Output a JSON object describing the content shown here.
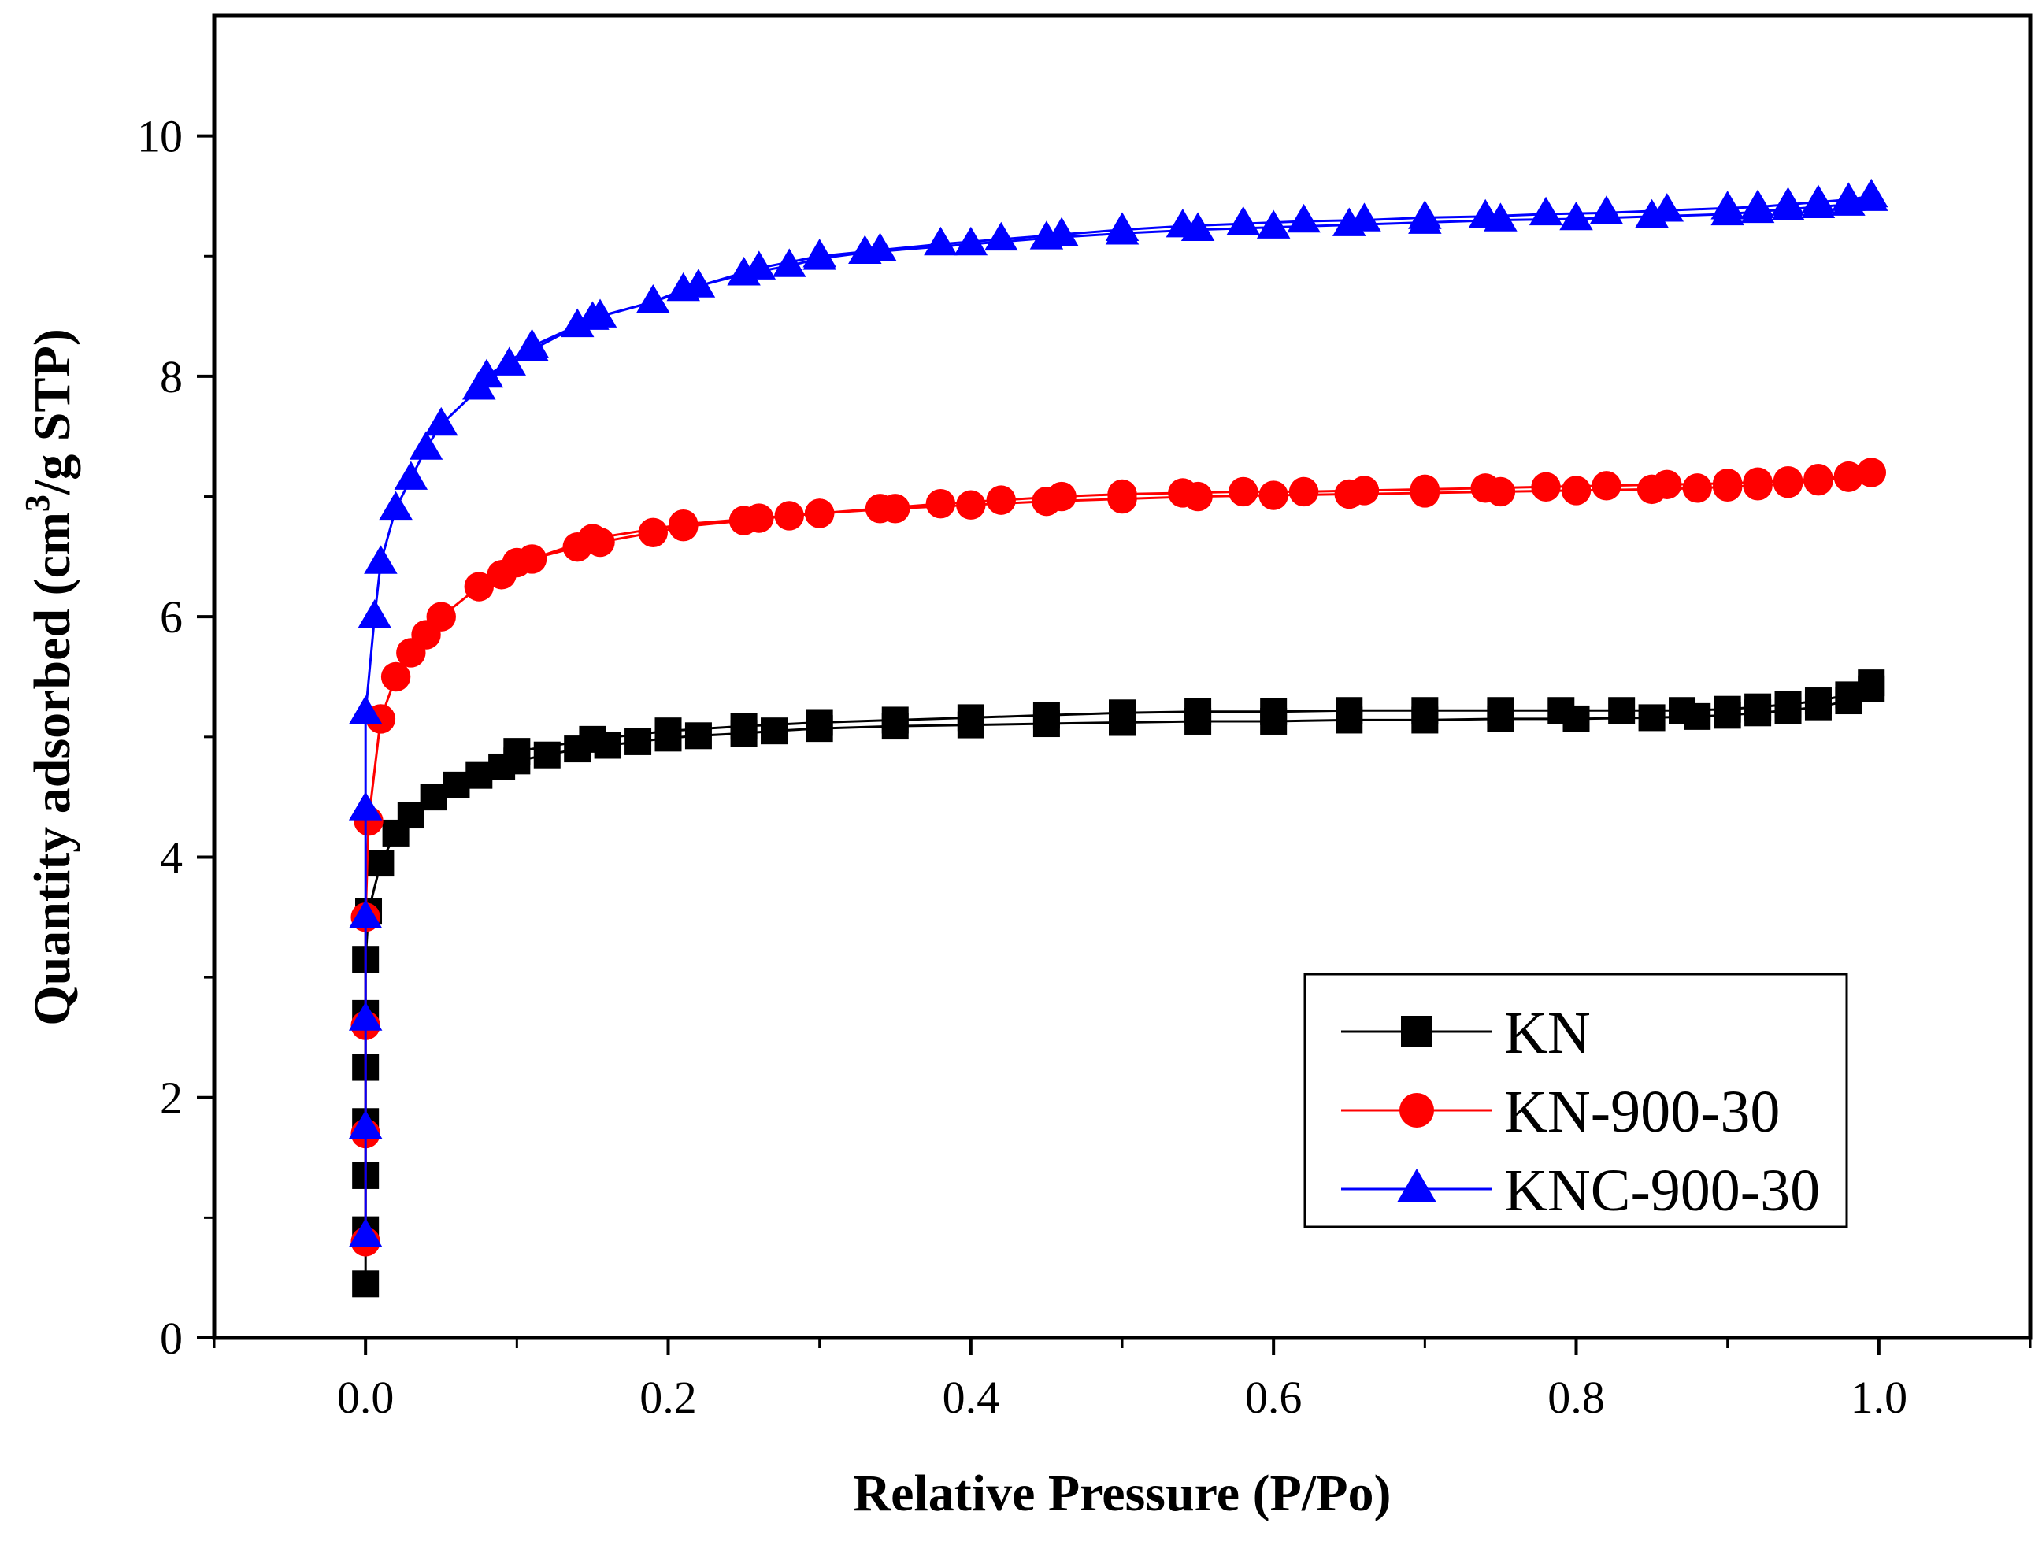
{
  "chart_data": {
    "type": "line",
    "title": "",
    "xlabel": "Relative Pressure (P/Po)",
    "ylabel": {
      "prefix": "Quantity adsorbed (cm",
      "sup": "3",
      "suffix": "/g STP)"
    },
    "xlim": [
      -0.1,
      1.1
    ],
    "ylim": [
      0,
      11
    ],
    "xticks": [
      0.0,
      0.2,
      0.4,
      0.6,
      0.8,
      1.0
    ],
    "xtick_labels": [
      "0.0",
      "0.2",
      "0.4",
      "0.6",
      "0.8",
      "1.0"
    ],
    "yticks": [
      0,
      2,
      4,
      6,
      8,
      10
    ],
    "ytick_labels": [
      "0",
      "2",
      "4",
      "6",
      "8",
      "10"
    ],
    "grid": false,
    "legend_position": "bottom-right",
    "series": [
      {
        "name": "KN",
        "color": "#000000",
        "marker": "square",
        "adsorption": [
          [
            0.0,
            0.45
          ],
          [
            0.0,
            0.9
          ],
          [
            0.0,
            1.35
          ],
          [
            0.0,
            1.8
          ],
          [
            0.0,
            2.25
          ],
          [
            0.0,
            2.7
          ],
          [
            0.0,
            3.15
          ],
          [
            0.002,
            3.55
          ],
          [
            0.01,
            3.95
          ],
          [
            0.02,
            4.2
          ],
          [
            0.03,
            4.35
          ],
          [
            0.045,
            4.5
          ],
          [
            0.06,
            4.6
          ],
          [
            0.075,
            4.68
          ],
          [
            0.09,
            4.75
          ],
          [
            0.1,
            4.8
          ],
          [
            0.12,
            4.85
          ],
          [
            0.14,
            4.9
          ],
          [
            0.16,
            4.93
          ],
          [
            0.18,
            4.96
          ],
          [
            0.2,
            4.99
          ],
          [
            0.22,
            5.01
          ],
          [
            0.25,
            5.03
          ],
          [
            0.27,
            5.05
          ],
          [
            0.3,
            5.07
          ],
          [
            0.35,
            5.09
          ],
          [
            0.4,
            5.1
          ],
          [
            0.45,
            5.11
          ],
          [
            0.5,
            5.12
          ],
          [
            0.55,
            5.13
          ],
          [
            0.6,
            5.13
          ],
          [
            0.65,
            5.14
          ],
          [
            0.7,
            5.14
          ],
          [
            0.75,
            5.15
          ],
          [
            0.8,
            5.15
          ],
          [
            0.85,
            5.16
          ],
          [
            0.88,
            5.17
          ],
          [
            0.9,
            5.18
          ],
          [
            0.92,
            5.2
          ],
          [
            0.94,
            5.22
          ],
          [
            0.96,
            5.25
          ],
          [
            0.98,
            5.3
          ],
          [
            0.995,
            5.4
          ]
        ],
        "desorption": [
          [
            0.995,
            5.45
          ],
          [
            0.98,
            5.35
          ],
          [
            0.96,
            5.3
          ],
          [
            0.94,
            5.27
          ],
          [
            0.92,
            5.25
          ],
          [
            0.9,
            5.23
          ],
          [
            0.87,
            5.22
          ],
          [
            0.83,
            5.22
          ],
          [
            0.79,
            5.22
          ],
          [
            0.75,
            5.22
          ],
          [
            0.7,
            5.22
          ],
          [
            0.65,
            5.22
          ],
          [
            0.6,
            5.21
          ],
          [
            0.55,
            5.21
          ],
          [
            0.5,
            5.2
          ],
          [
            0.45,
            5.18
          ],
          [
            0.4,
            5.16
          ],
          [
            0.35,
            5.14
          ],
          [
            0.3,
            5.12
          ],
          [
            0.25,
            5.09
          ],
          [
            0.2,
            5.05
          ],
          [
            0.15,
            4.98
          ],
          [
            0.1,
            4.88
          ]
        ]
      },
      {
        "name": "KN-900-30",
        "color": "#ff0000",
        "marker": "circle",
        "adsorption": [
          [
            0.0,
            0.8
          ],
          [
            0.0,
            1.7
          ],
          [
            0.0,
            2.6
          ],
          [
            0.0,
            3.5
          ],
          [
            0.002,
            4.3
          ],
          [
            0.01,
            5.15
          ],
          [
            0.02,
            5.5
          ],
          [
            0.03,
            5.7
          ],
          [
            0.04,
            5.85
          ],
          [
            0.05,
            6.0
          ],
          [
            0.075,
            6.25
          ],
          [
            0.09,
            6.35
          ],
          [
            0.1,
            6.45
          ],
          [
            0.14,
            6.58
          ],
          [
            0.155,
            6.62
          ],
          [
            0.19,
            6.7
          ],
          [
            0.21,
            6.75
          ],
          [
            0.25,
            6.8
          ],
          [
            0.28,
            6.84
          ],
          [
            0.3,
            6.86
          ],
          [
            0.35,
            6.9
          ],
          [
            0.4,
            6.93
          ],
          [
            0.45,
            6.96
          ],
          [
            0.5,
            6.98
          ],
          [
            0.55,
            7.0
          ],
          [
            0.6,
            7.01
          ],
          [
            0.65,
            7.02
          ],
          [
            0.7,
            7.03
          ],
          [
            0.75,
            7.04
          ],
          [
            0.8,
            7.05
          ],
          [
            0.85,
            7.06
          ],
          [
            0.88,
            7.07
          ],
          [
            0.9,
            7.08
          ],
          [
            0.92,
            7.09
          ],
          [
            0.94,
            7.11
          ],
          [
            0.96,
            7.13
          ],
          [
            0.98,
            7.16
          ],
          [
            0.995,
            7.2
          ]
        ],
        "desorption": [
          [
            0.995,
            7.2
          ],
          [
            0.98,
            7.17
          ],
          [
            0.96,
            7.15
          ],
          [
            0.94,
            7.13
          ],
          [
            0.92,
            7.12
          ],
          [
            0.9,
            7.11
          ],
          [
            0.86,
            7.1
          ],
          [
            0.82,
            7.09
          ],
          [
            0.78,
            7.08
          ],
          [
            0.74,
            7.07
          ],
          [
            0.7,
            7.06
          ],
          [
            0.66,
            7.05
          ],
          [
            0.62,
            7.04
          ],
          [
            0.58,
            7.04
          ],
          [
            0.54,
            7.03
          ],
          [
            0.5,
            7.02
          ],
          [
            0.46,
            7.0
          ],
          [
            0.42,
            6.97
          ],
          [
            0.38,
            6.94
          ],
          [
            0.34,
            6.9
          ],
          [
            0.3,
            6.86
          ],
          [
            0.26,
            6.82
          ],
          [
            0.21,
            6.77
          ],
          [
            0.15,
            6.65
          ],
          [
            0.11,
            6.48
          ]
        ]
      },
      {
        "name": "KNC-900-30",
        "color": "#0000ff",
        "marker": "triangle",
        "adsorption": [
          [
            0.0,
            0.85
          ],
          [
            0.0,
            1.75
          ],
          [
            0.0,
            2.65
          ],
          [
            0.0,
            3.5
          ],
          [
            0.0,
            4.4
          ],
          [
            0.0,
            5.2
          ],
          [
            0.006,
            6.0
          ],
          [
            0.01,
            6.45
          ],
          [
            0.02,
            6.9
          ],
          [
            0.03,
            7.15
          ],
          [
            0.04,
            7.4
          ],
          [
            0.05,
            7.6
          ],
          [
            0.075,
            7.9
          ],
          [
            0.095,
            8.1
          ],
          [
            0.11,
            8.22
          ],
          [
            0.14,
            8.42
          ],
          [
            0.155,
            8.5
          ],
          [
            0.19,
            8.62
          ],
          [
            0.21,
            8.72
          ],
          [
            0.25,
            8.85
          ],
          [
            0.28,
            8.92
          ],
          [
            0.3,
            8.98
          ],
          [
            0.33,
            9.03
          ],
          [
            0.4,
            9.1
          ],
          [
            0.45,
            9.15
          ],
          [
            0.5,
            9.19
          ],
          [
            0.55,
            9.22
          ],
          [
            0.6,
            9.24
          ],
          [
            0.65,
            9.26
          ],
          [
            0.7,
            9.28
          ],
          [
            0.75,
            9.3
          ],
          [
            0.8,
            9.31
          ],
          [
            0.85,
            9.33
          ],
          [
            0.9,
            9.35
          ],
          [
            0.92,
            9.37
          ],
          [
            0.94,
            9.39
          ],
          [
            0.96,
            9.41
          ],
          [
            0.98,
            9.43
          ],
          [
            0.995,
            9.47
          ]
        ],
        "desorption": [
          [
            0.995,
            9.5
          ],
          [
            0.98,
            9.47
          ],
          [
            0.96,
            9.45
          ],
          [
            0.94,
            9.43
          ],
          [
            0.92,
            9.41
          ],
          [
            0.9,
            9.4
          ],
          [
            0.86,
            9.38
          ],
          [
            0.82,
            9.36
          ],
          [
            0.78,
            9.35
          ],
          [
            0.74,
            9.33
          ],
          [
            0.7,
            9.32
          ],
          [
            0.66,
            9.3
          ],
          [
            0.62,
            9.29
          ],
          [
            0.58,
            9.27
          ],
          [
            0.54,
            9.25
          ],
          [
            0.5,
            9.22
          ],
          [
            0.46,
            9.18
          ],
          [
            0.42,
            9.14
          ],
          [
            0.38,
            9.1
          ],
          [
            0.34,
            9.05
          ],
          [
            0.3,
            9.0
          ],
          [
            0.26,
            8.9
          ],
          [
            0.22,
            8.75
          ],
          [
            0.19,
            8.62
          ],
          [
            0.15,
            8.48
          ],
          [
            0.11,
            8.25
          ],
          [
            0.08,
            8.0
          ]
        ]
      }
    ]
  }
}
